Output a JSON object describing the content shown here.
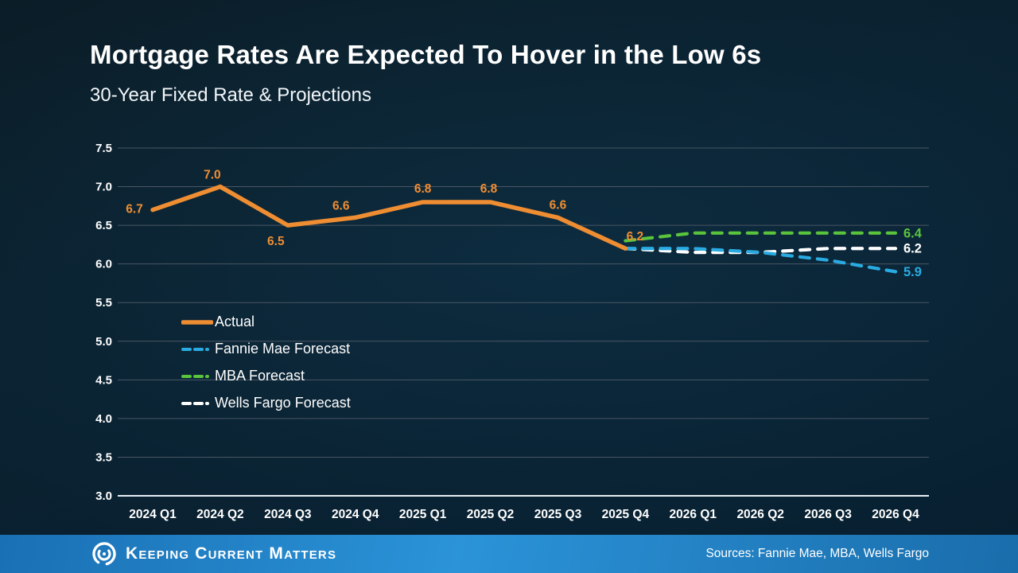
{
  "header": {
    "title": "Mortgage Rates Are Expected To Hover in the Low 6s",
    "subtitle": "30-Year Fixed Rate & Projections"
  },
  "chart_data": {
    "type": "line",
    "x_labels": [
      "2024 Q1",
      "2024 Q2",
      "2024 Q3",
      "2024 Q4",
      "2025 Q1",
      "2025 Q2",
      "2025 Q3",
      "2025 Q4",
      "2026 Q1",
      "2026 Q2",
      "2026 Q3",
      "2026 Q4"
    ],
    "ylim": [
      3.0,
      7.5
    ],
    "ytick_step": 0.5,
    "grid": true,
    "legend_position": "inside-left",
    "series": [
      {
        "name": "Actual",
        "color": "#EF8D32",
        "style": "solid",
        "start_index": 0,
        "values": [
          6.7,
          7.0,
          6.5,
          6.6,
          6.8,
          6.8,
          6.6,
          6.2
        ],
        "point_labels": [
          "6.7",
          "7.0",
          "6.5",
          "6.6",
          "6.8",
          "6.8",
          "6.6",
          "6.2"
        ]
      },
      {
        "name": "Fannie Mae Forecast",
        "color": "#29ABE2",
        "style": "dashed",
        "start_index": 7,
        "values": [
          6.2,
          6.2,
          6.15,
          6.05,
          5.9
        ],
        "end_label": "5.9"
      },
      {
        "name": "MBA Forecast",
        "color": "#5AC43C",
        "style": "dashed",
        "start_index": 7,
        "values": [
          6.3,
          6.4,
          6.4,
          6.4,
          6.4
        ],
        "end_label": "6.4"
      },
      {
        "name": "Wells Fargo Forecast",
        "color": "#FFFFFF",
        "style": "dashed",
        "start_index": 7,
        "values": [
          6.2,
          6.15,
          6.15,
          6.2,
          6.2
        ],
        "end_label": "6.2"
      }
    ]
  },
  "footer": {
    "brand": "Keeping Current Matters",
    "sources": "Sources: Fannie Mae, MBA, Wells Fargo",
    "bar_color": "#1E7FC4"
  },
  "colors": {
    "background": "#0A2130",
    "gridline": "#4A5663",
    "axis": "#E8EEF3",
    "text": "#FFFFFF"
  },
  "icons": {
    "logo": "kcm-swirl-icon"
  }
}
